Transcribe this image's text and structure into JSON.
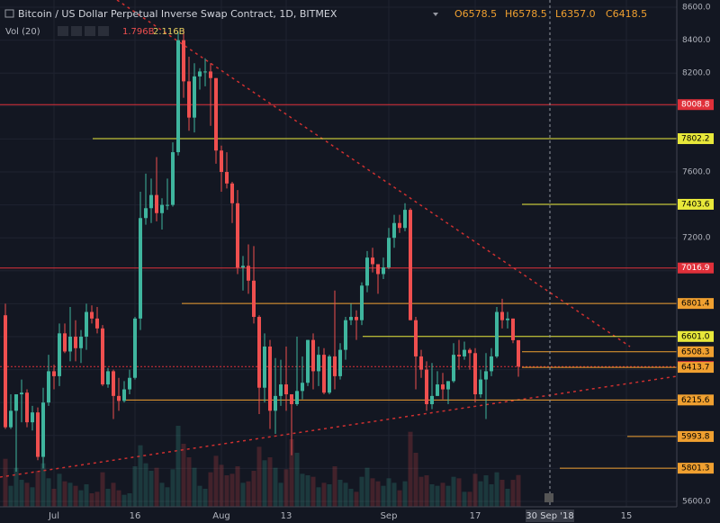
{
  "chart_data": {
    "type": "candlestick",
    "title": "Bitcoin / US Dollar Perpetual Inverse Swap Contract, 1D, BITMEX",
    "ohlc_legend": [
      "O6578.5",
      "H6578.5",
      "L6357.0",
      "C6418.5"
    ],
    "volume_title": "Vol (20)",
    "volume_legend": [
      "1.796B",
      "2.116B"
    ],
    "cursor_label": "30 Sep '18",
    "up_color": "#3fb59e",
    "down_color": "#ef4f4f",
    "categories": [
      null,
      null,
      null,
      null,
      null,
      null,
      null,
      null,
      null,
      "Jul",
      null,
      null,
      null,
      null,
      null,
      null,
      null,
      null,
      null,
      null,
      null,
      null,
      null,
      null,
      "16",
      null,
      null,
      null,
      null,
      null,
      null,
      null,
      null,
      null,
      null,
      null,
      null,
      null,
      null,
      null,
      "Aug",
      null,
      null,
      null,
      null,
      null,
      null,
      null,
      null,
      null,
      null,
      null,
      "13",
      null,
      null,
      null,
      null,
      null,
      null,
      null,
      null,
      null,
      null,
      null,
      null,
      null,
      null,
      null,
      null,
      null,
      null,
      "Sep",
      null,
      null,
      null,
      null,
      null,
      null,
      null,
      null,
      null,
      null,
      null,
      null,
      null,
      null,
      null,
      "17",
      null,
      null,
      null,
      null,
      null,
      null,
      null,
      null,
      null,
      null,
      null,
      null,
      "30 Sep '18",
      null,
      null,
      null,
      null,
      null,
      null,
      null,
      null,
      null,
      null,
      null,
      null,
      null,
      null,
      "15",
      null,
      null
    ],
    "open": [
      6730,
      6050,
      6150,
      6250,
      6260,
      6080,
      6140,
      5870,
      6200,
      6390,
      6360,
      6620,
      6510,
      6600,
      6530,
      6600,
      6750,
      6710,
      6650,
      6310,
      6390,
      6240,
      6210,
      6280,
      6350,
      6710,
      7320,
      7380,
      7460,
      7350,
      7400,
      7400,
      7720,
      8400,
      8150,
      7930,
      8180,
      8210,
      8210,
      8170,
      7730,
      7600,
      7530,
      7410,
      7020,
      7030,
      6940,
      6720,
      6290,
      6540,
      6150,
      6240,
      6310,
      6250,
      6190,
      6270,
      6320,
      6580,
      6390,
      6490,
      6260,
      6480,
      6360,
      6520,
      6700,
      6720,
      6700,
      6910,
      7080,
      7040,
      6980,
      7020,
      7200,
      7290,
      7260,
      7370,
      6700,
      6480,
      6400,
      6190,
      6240,
      6310,
      6280,
      6330,
      6490,
      6480,
      6520,
      6500,
      6250,
      6340,
      6390,
      6480,
      6750,
      6700,
      6710,
      6578.5,
      null,
      null,
      null,
      null,
      null,
      null,
      null,
      null,
      null,
      null,
      null,
      null,
      null,
      null,
      null,
      null,
      null,
      null,
      null,
      null,
      null,
      null
    ],
    "high": [
      6800,
      6250,
      6250,
      6340,
      6280,
      6180,
      6170,
      6290,
      6490,
      6430,
      6680,
      6680,
      6780,
      6700,
      6640,
      6800,
      6790,
      6780,
      6670,
      6410,
      6400,
      6350,
      6330,
      6400,
      6720,
      7480,
      7590,
      7560,
      7690,
      7440,
      7560,
      7780,
      8450,
      8470,
      8300,
      8260,
      8230,
      8290,
      8260,
      8170,
      7760,
      7720,
      7540,
      7490,
      7090,
      7160,
      7150,
      6730,
      6620,
      6580,
      6470,
      6460,
      6540,
      6250,
      6600,
      6480,
      6580,
      6620,
      6540,
      6530,
      6490,
      6880,
      6560,
      6720,
      6800,
      6760,
      6930,
      7120,
      7140,
      7040,
      7080,
      7260,
      7340,
      7340,
      7410,
      7380,
      6720,
      6520,
      6450,
      6440,
      6390,
      6380,
      6330,
      6560,
      6580,
      6570,
      6530,
      6530,
      6400,
      6500,
      6530,
      6780,
      6830,
      6750,
      6710,
      6578.5,
      null,
      null,
      null,
      null,
      null,
      null,
      null,
      null,
      null,
      null,
      null,
      null,
      null,
      null,
      null,
      null,
      null,
      null,
      null,
      null,
      null,
      null
    ],
    "low": [
      6040,
      6040,
      5780,
      6080,
      6050,
      6030,
      5850,
      5800,
      6180,
      6280,
      6300,
      6500,
      6450,
      6450,
      6440,
      6520,
      6680,
      6620,
      6300,
      6290,
      6100,
      6150,
      6200,
      6250,
      6340,
      6640,
      7280,
      7290,
      7300,
      7250,
      7370,
      7390,
      7700,
      8050,
      7850,
      7840,
      8100,
      8120,
      7880,
      7650,
      7480,
      7500,
      7290,
      6980,
      6880,
      6860,
      6680,
      6130,
      6200,
      6040,
      6010,
      6180,
      6150,
      5880,
      6180,
      6220,
      6300,
      6280,
      6300,
      6250,
      6250,
      6280,
      6340,
      6460,
      6670,
      6580,
      6670,
      6870,
      6990,
      6860,
      6950,
      7010,
      7140,
      7230,
      7240,
      6700,
      6280,
      6350,
      6150,
      6160,
      6240,
      6220,
      6190,
      6320,
      6400,
      6460,
      6400,
      6200,
      6230,
      6100,
      6360,
      6470,
      6650,
      6650,
      6560,
      6357,
      null,
      null,
      null,
      null,
      null,
      null,
      null,
      null,
      null,
      null,
      null,
      null,
      null,
      null,
      null,
      null,
      null,
      null,
      null,
      null,
      null,
      null
    ],
    "close": [
      6050,
      6150,
      6250,
      6260,
      6080,
      6140,
      5870,
      6200,
      6390,
      6360,
      6620,
      6510,
      6600,
      6530,
      6600,
      6750,
      6710,
      6650,
      6310,
      6390,
      6240,
      6210,
      6280,
      6350,
      6710,
      7320,
      7380,
      7460,
      7350,
      7400,
      7400,
      7720,
      8400,
      8150,
      7930,
      8180,
      8210,
      8210,
      8170,
      7730,
      7600,
      7530,
      7410,
      7020,
      7030,
      6940,
      6720,
      6290,
      6540,
      6150,
      6240,
      6310,
      6250,
      6190,
      6270,
      6320,
      6580,
      6390,
      6490,
      6260,
      6480,
      6360,
      6520,
      6700,
      6720,
      6700,
      6910,
      7080,
      7040,
      6980,
      7020,
      7200,
      7290,
      7260,
      7370,
      6700,
      6480,
      6400,
      6190,
      6240,
      6310,
      6280,
      6330,
      6490,
      6480,
      6520,
      6500,
      6250,
      6340,
      6390,
      6480,
      6750,
      6700,
      6710,
      6578.5,
      6418.5,
      null,
      null,
      null,
      null,
      null,
      null,
      null,
      null,
      null,
      null,
      null,
      null,
      null,
      null,
      null,
      null,
      null,
      null,
      null,
      null,
      null,
      null
    ],
    "volume": [
      3.2,
      1.4,
      2.6,
      1.8,
      1.6,
      1.3,
      2.4,
      2.9,
      1.9,
      1.2,
      2.2,
      1.7,
      1.6,
      1.4,
      1.1,
      1.5,
      0.9,
      1.0,
      2.3,
      1.2,
      1.6,
      1.1,
      0.8,
      0.9,
      2.7,
      4.1,
      2.9,
      2.4,
      2.6,
      1.6,
      1.3,
      2.5,
      5.4,
      4.2,
      3.3,
      2.6,
      1.4,
      1.2,
      2.3,
      3.4,
      2.8,
      2.1,
      2.2,
      2.7,
      1.6,
      1.7,
      2.4,
      4.0,
      3.1,
      3.3,
      2.6,
      1.6,
      2.5,
      4.5,
      3.6,
      2.2,
      2.1,
      2.0,
      1.3,
      1.6,
      1.5,
      2.7,
      1.8,
      1.6,
      1.2,
      1.0,
      2.0,
      2.6,
      1.9,
      1.7,
      1.4,
      1.9,
      1.6,
      1.1,
      1.7,
      5.0,
      3.6,
      2.0,
      2.1,
      1.5,
      1.4,
      1.6,
      1.4,
      2.0,
      1.9,
      1.0,
      1.0,
      2.2,
      1.7,
      2.1,
      1.5,
      2.3,
      1.8,
      1.2,
      1.796,
      2.116,
      null,
      null,
      null,
      null,
      null,
      null,
      null,
      null,
      null,
      null,
      null,
      null,
      null,
      null,
      null,
      null,
      null,
      null,
      null,
      null,
      null,
      null
    ],
    "vol_lim": [
      0,
      12
    ],
    "ylim": [
      5567,
      8644
    ],
    "yticks": [
      {
        "value": 5600,
        "label": "5600.0"
      },
      {
        "value": 5800,
        "label": "5800.0"
      },
      {
        "value": 6000,
        "label": "6000.0"
      },
      {
        "value": 6200,
        "label": "6200.0"
      },
      {
        "value": 6400,
        "label": "6400.0"
      },
      {
        "value": 6600,
        "label": "6600.0"
      },
      {
        "value": 6800,
        "label": "6800.0"
      },
      {
        "value": 7000,
        "label": "7000.0"
      },
      {
        "value": 7200,
        "label": "7200.0"
      },
      {
        "value": 7400,
        "label": "7400.0"
      },
      {
        "value": 7600,
        "label": "7600.0"
      },
      {
        "value": 7800,
        "label": "7800.0"
      },
      {
        "value": 8000,
        "label": "8000.0"
      },
      {
        "value": 8200,
        "label": "8200.0"
      },
      {
        "value": 8400,
        "label": "8400.0"
      },
      {
        "value": 8600,
        "label": "8600.0"
      }
    ],
    "levels": [
      {
        "value": 8008.8,
        "color": "#e0303a"
      },
      {
        "value": 7802.2,
        "color": "#e8e83a"
      },
      {
        "value": 7403.6,
        "color": "#e8e83a"
      },
      {
        "value": 7016.9,
        "color": "#e0303a"
      },
      {
        "value": 6801.4,
        "color": "#f0a030"
      },
      {
        "value": 6601.0,
        "label": "6601.0",
        "color": "#e8e83a"
      },
      {
        "value": 6508.3,
        "color": "#f0a030"
      },
      {
        "value": 6418.5,
        "color": "#e0303a"
      },
      {
        "value": 6413.7,
        "color": "#f0a030"
      },
      {
        "value": 6215.6,
        "color": "#f0a030"
      },
      {
        "value": 5993.8,
        "color": "#f0a030"
      },
      {
        "value": 5801.3,
        "color": "#f0a030"
      }
    ]
  }
}
